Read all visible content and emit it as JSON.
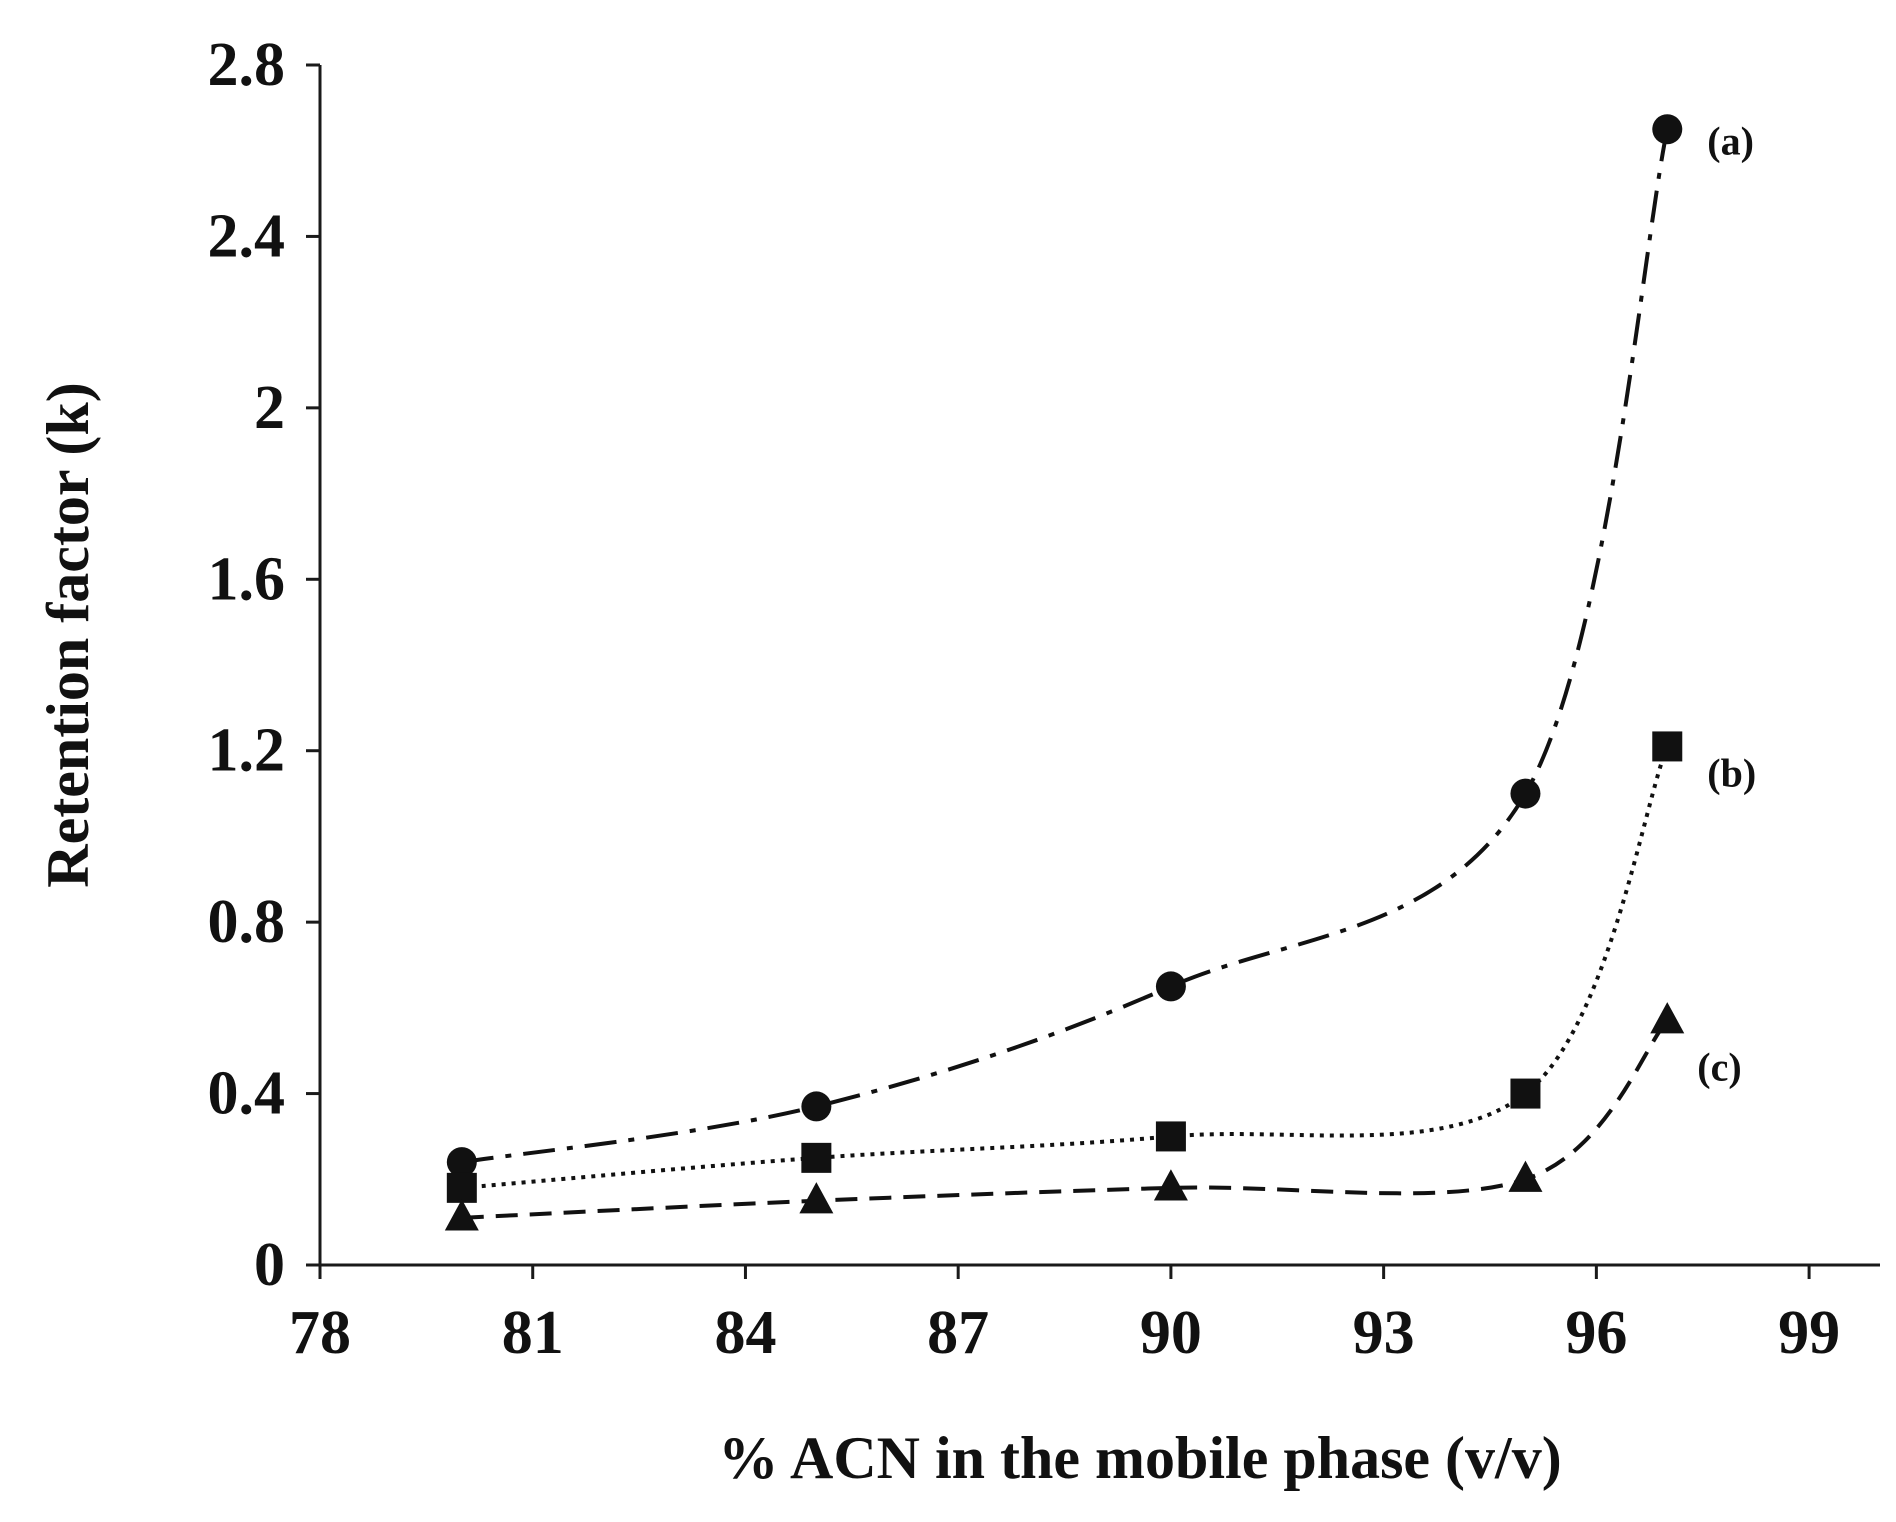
{
  "chart_data": {
    "type": "scatter",
    "title": "",
    "xlabel": "% ACN in the mobile phase (v/v)",
    "ylabel": "Retention factor (k)",
    "xlim": [
      78,
      100
    ],
    "ylim": [
      0,
      2.8
    ],
    "x_ticks": [
      78,
      81,
      84,
      87,
      90,
      93,
      96,
      99
    ],
    "y_ticks": [
      0,
      0.4,
      0.8,
      1.2,
      1.6,
      2,
      2.4,
      2.8
    ],
    "x_tick_labels": [
      "78",
      "81",
      "84",
      "87",
      "90",
      "93",
      "96",
      "99"
    ],
    "y_tick_labels": [
      "0",
      "0.4",
      "0.8",
      "1.2",
      "1.6",
      "2",
      "2.4",
      "2.8"
    ],
    "grid": false,
    "legend": "none",
    "x": [
      80,
      85,
      90,
      95,
      97
    ],
    "series": [
      {
        "name": "(a)",
        "marker": "circle",
        "line_style": "dash-dot",
        "values": [
          0.24,
          0.37,
          0.65,
          1.1,
          2.65
        ]
      },
      {
        "name": "(b)",
        "marker": "square",
        "line_style": "dotted",
        "values": [
          0.18,
          0.25,
          0.3,
          0.4,
          1.21
        ]
      },
      {
        "name": "(c)",
        "marker": "triangle",
        "line_style": "dashed",
        "values": [
          0.11,
          0.15,
          0.18,
          0.2,
          0.57
        ]
      }
    ],
    "color": "#111111"
  }
}
